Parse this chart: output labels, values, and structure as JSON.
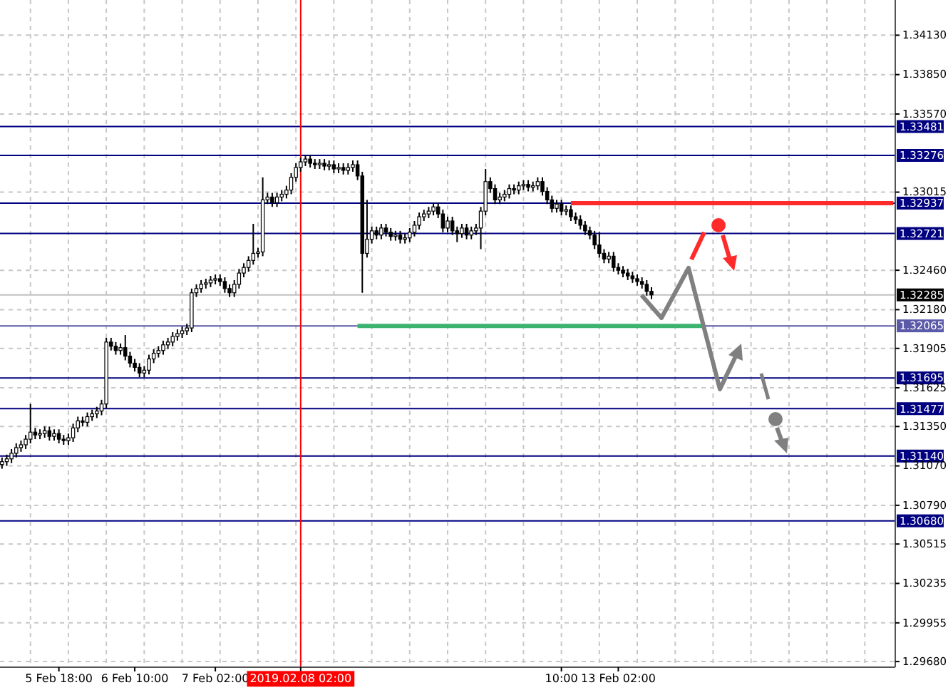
{
  "chart_data": {
    "type": "candlestick",
    "categories": [
      null,
      null,
      null,
      null,
      null,
      null,
      null,
      null,
      null,
      null,
      null,
      null,
      "5 Feb 18:00",
      null,
      null,
      null,
      null,
      null,
      null,
      null,
      null,
      null,
      null,
      null,
      null,
      null,
      null,
      null,
      "6 Feb 10:00",
      null,
      null,
      null,
      null,
      null,
      null,
      null,
      null,
      null,
      null,
      null,
      null,
      null,
      null,
      null,
      null,
      "7 Feb 02:00",
      null,
      null,
      null,
      null,
      null,
      null,
      null,
      null,
      null,
      null,
      null,
      null,
      null,
      null,
      null,
      null,
      null,
      "2019.02.08 02:00",
      null,
      null,
      null,
      null,
      null,
      null,
      null,
      null,
      null,
      null,
      null,
      null,
      null,
      null,
      null,
      null,
      null,
      null,
      null,
      null,
      null,
      null,
      null,
      null,
      null,
      null,
      null,
      null,
      null,
      null,
      null,
      null,
      null,
      null,
      null,
      null,
      null,
      null,
      null,
      null,
      null,
      null,
      null,
      null,
      null,
      null,
      null,
      null,
      null,
      null,
      null,
      null,
      null,
      null,
      "10:00",
      null,
      null,
      null,
      null,
      null,
      null,
      null,
      null,
      null,
      null,
      null,
      "13 Feb 02:00",
      null,
      null,
      null,
      null,
      null,
      null,
      null,
      null,
      null,
      null,
      null,
      null,
      null,
      null,
      null,
      null,
      null,
      null,
      null,
      null,
      null,
      null,
      null,
      null,
      null,
      null,
      null,
      null,
      null,
      null,
      null,
      null,
      null,
      null,
      null,
      null,
      null,
      null,
      null,
      null,
      null,
      null,
      null,
      null,
      null,
      null,
      null,
      null,
      null,
      null,
      null,
      null,
      null,
      null,
      null,
      null,
      null,
      null
    ],
    "color": "#000000",
    "ohlc": [
      [
        1.3108,
        1.3113,
        1.3105,
        1.311
      ],
      [
        1.311,
        1.3115,
        1.3107,
        1.3112
      ],
      [
        1.3112,
        1.3119,
        1.3109,
        1.3116
      ],
      [
        1.3116,
        1.3123,
        1.3113,
        1.312
      ],
      [
        1.312,
        1.3125,
        1.3117,
        1.3122
      ],
      [
        1.3122,
        1.3129,
        1.3119,
        1.3126
      ],
      [
        1.3126,
        1.3151,
        1.3123,
        1.3131
      ],
      [
        1.3131,
        1.3134,
        1.3126,
        1.3129
      ],
      [
        1.3129,
        1.3133,
        1.3126,
        1.313
      ],
      [
        1.313,
        1.3135,
        1.3127,
        1.3132
      ],
      [
        1.3132,
        1.3135,
        1.3125,
        1.3128
      ],
      [
        1.3128,
        1.3133,
        1.3125,
        1.313
      ],
      [
        1.313,
        1.3133,
        1.3123,
        1.3126
      ],
      [
        1.3126,
        1.3129,
        1.3122,
        1.3125
      ],
      [
        1.3125,
        1.313,
        1.3122,
        1.3127
      ],
      [
        1.3127,
        1.3137,
        1.3124,
        1.3134
      ],
      [
        1.3134,
        1.3142,
        1.3131,
        1.3139
      ],
      [
        1.3139,
        1.3142,
        1.3135,
        1.3138
      ],
      [
        1.3138,
        1.3145,
        1.3135,
        1.3142
      ],
      [
        1.3142,
        1.3147,
        1.3139,
        1.3144
      ],
      [
        1.3144,
        1.3149,
        1.3141,
        1.3146
      ],
      [
        1.3146,
        1.3154,
        1.3143,
        1.3151
      ],
      [
        1.3151,
        1.3198,
        1.3148,
        1.3195
      ],
      [
        1.3195,
        1.3198,
        1.3189,
        1.3192
      ],
      [
        1.3192,
        1.3195,
        1.3186,
        1.3189
      ],
      [
        1.3189,
        1.3194,
        1.3186,
        1.3191
      ],
      [
        1.3191,
        1.32,
        1.3182,
        1.3185
      ],
      [
        1.3185,
        1.3188,
        1.3177,
        1.318
      ],
      [
        1.318,
        1.3183,
        1.3174,
        1.3177
      ],
      [
        1.3177,
        1.318,
        1.317,
        1.3173
      ],
      [
        1.3173,
        1.3178,
        1.317,
        1.3175
      ],
      [
        1.3175,
        1.3186,
        1.3172,
        1.3183
      ],
      [
        1.3183,
        1.319,
        1.318,
        1.3187
      ],
      [
        1.3187,
        1.3192,
        1.3184,
        1.3189
      ],
      [
        1.3189,
        1.3196,
        1.3186,
        1.3193
      ],
      [
        1.3193,
        1.3198,
        1.319,
        1.3195
      ],
      [
        1.3195,
        1.3202,
        1.3192,
        1.3199
      ],
      [
        1.3199,
        1.3204,
        1.3196,
        1.3201
      ],
      [
        1.3201,
        1.3206,
        1.3198,
        1.3203
      ],
      [
        1.3203,
        1.3208,
        1.32,
        1.3205
      ],
      [
        1.3205,
        1.3233,
        1.3202,
        1.323
      ],
      [
        1.323,
        1.3236,
        1.3227,
        1.3233
      ],
      [
        1.3233,
        1.3239,
        1.323,
        1.3236
      ],
      [
        1.3236,
        1.324,
        1.3233,
        1.3237
      ],
      [
        1.3237,
        1.3242,
        1.3234,
        1.3239
      ],
      [
        1.3239,
        1.3243,
        1.3236,
        1.324
      ],
      [
        1.324,
        1.3243,
        1.3235,
        1.3238
      ],
      [
        1.3238,
        1.3241,
        1.323,
        1.3233
      ],
      [
        1.3233,
        1.3236,
        1.3227,
        1.323
      ],
      [
        1.323,
        1.3239,
        1.3227,
        1.3236
      ],
      [
        1.3236,
        1.3247,
        1.3233,
        1.3244
      ],
      [
        1.3244,
        1.3251,
        1.3241,
        1.3248
      ],
      [
        1.3248,
        1.3256,
        1.3245,
        1.3253
      ],
      [
        1.3253,
        1.3279,
        1.325,
        1.3258
      ],
      [
        1.3258,
        1.3262,
        1.3255,
        1.3259
      ],
      [
        1.3259,
        1.3312,
        1.3256,
        1.3296
      ],
      [
        1.3296,
        1.3301,
        1.3293,
        1.3298
      ],
      [
        1.3298,
        1.3301,
        1.3291,
        1.3294
      ],
      [
        1.3294,
        1.3301,
        1.3291,
        1.3298
      ],
      [
        1.3298,
        1.3303,
        1.3295,
        1.33
      ],
      [
        1.33,
        1.3306,
        1.3297,
        1.3303
      ],
      [
        1.3303,
        1.3315,
        1.33,
        1.3312
      ],
      [
        1.3312,
        1.3322,
        1.3309,
        1.3319
      ],
      [
        1.3319,
        1.3326,
        1.3316,
        1.3323
      ],
      [
        1.3323,
        1.3328,
        1.332,
        1.3325
      ],
      [
        1.3325,
        1.3328,
        1.3319,
        1.3322
      ],
      [
        1.3322,
        1.3325,
        1.3318,
        1.3321
      ],
      [
        1.3321,
        1.3325,
        1.3318,
        1.3322
      ],
      [
        1.3322,
        1.3325,
        1.3317,
        1.332
      ],
      [
        1.332,
        1.3324,
        1.3317,
        1.3321
      ],
      [
        1.3321,
        1.3324,
        1.3315,
        1.3318
      ],
      [
        1.3318,
        1.3322,
        1.3315,
        1.3319
      ],
      [
        1.3319,
        1.3322,
        1.3314,
        1.3317
      ],
      [
        1.3317,
        1.3322,
        1.3314,
        1.3319
      ],
      [
        1.3319,
        1.3324,
        1.3316,
        1.3321
      ],
      [
        1.3321,
        1.3324,
        1.331,
        1.3313
      ],
      [
        1.3313,
        1.3316,
        1.323,
        1.3258
      ],
      [
        1.3258,
        1.3296,
        1.3255,
        1.3268
      ],
      [
        1.3268,
        1.3277,
        1.3265,
        1.3274
      ],
      [
        1.3274,
        1.3277,
        1.3268,
        1.3271
      ],
      [
        1.3271,
        1.3279,
        1.3268,
        1.3276
      ],
      [
        1.3276,
        1.3279,
        1.327,
        1.3273
      ],
      [
        1.3273,
        1.3276,
        1.3267,
        1.327
      ],
      [
        1.327,
        1.3274,
        1.3267,
        1.3271
      ],
      [
        1.3271,
        1.3274,
        1.3265,
        1.3268
      ],
      [
        1.3268,
        1.3272,
        1.3265,
        1.3269
      ],
      [
        1.3269,
        1.3276,
        1.3266,
        1.3273
      ],
      [
        1.3273,
        1.3281,
        1.327,
        1.3278
      ],
      [
        1.3278,
        1.3287,
        1.3275,
        1.3284
      ],
      [
        1.3284,
        1.3289,
        1.3281,
        1.3286
      ],
      [
        1.3286,
        1.3291,
        1.3283,
        1.3288
      ],
      [
        1.3288,
        1.3294,
        1.3285,
        1.3291
      ],
      [
        1.3291,
        1.3294,
        1.3283,
        1.3286
      ],
      [
        1.3286,
        1.3289,
        1.3273,
        1.3276
      ],
      [
        1.3276,
        1.3284,
        1.3273,
        1.3281
      ],
      [
        1.3281,
        1.3284,
        1.3271,
        1.3274
      ],
      [
        1.3274,
        1.3277,
        1.3266,
        1.3272
      ],
      [
        1.3272,
        1.3279,
        1.3269,
        1.3276
      ],
      [
        1.3276,
        1.3279,
        1.3268,
        1.3271
      ],
      [
        1.3271,
        1.3277,
        1.3268,
        1.3274
      ],
      [
        1.3274,
        1.3279,
        1.3271,
        1.3276
      ],
      [
        1.3276,
        1.3291,
        1.3261,
        1.3288
      ],
      [
        1.3288,
        1.3318,
        1.3285,
        1.3309
      ],
      [
        1.3309,
        1.3312,
        1.3301,
        1.3304
      ],
      [
        1.3304,
        1.3307,
        1.3293,
        1.3296
      ],
      [
        1.3296,
        1.3301,
        1.3293,
        1.3298
      ],
      [
        1.3298,
        1.3303,
        1.3295,
        1.33
      ],
      [
        1.33,
        1.3307,
        1.3297,
        1.3304
      ],
      [
        1.3304,
        1.3307,
        1.33,
        1.3303
      ],
      [
        1.3303,
        1.3309,
        1.33,
        1.3306
      ],
      [
        1.3306,
        1.331,
        1.3303,
        1.3307
      ],
      [
        1.3307,
        1.331,
        1.3302,
        1.3305
      ],
      [
        1.3305,
        1.3309,
        1.3302,
        1.3306
      ],
      [
        1.3306,
        1.3312,
        1.3303,
        1.3309
      ],
      [
        1.3309,
        1.3312,
        1.3299,
        1.3302
      ],
      [
        1.3302,
        1.3305,
        1.3293,
        1.3296
      ],
      [
        1.3296,
        1.3299,
        1.3287,
        1.329
      ],
      [
        1.329,
        1.3296,
        1.3287,
        1.3293
      ],
      [
        1.3293,
        1.3296,
        1.3285,
        1.3288
      ],
      [
        1.3288,
        1.3292,
        1.3285,
        1.3289
      ],
      [
        1.3289,
        1.3292,
        1.3281,
        1.3284
      ],
      [
        1.3284,
        1.3287,
        1.3279,
        1.3282
      ],
      [
        1.3282,
        1.3285,
        1.3275,
        1.3278
      ],
      [
        1.3278,
        1.3281,
        1.3271,
        1.3274
      ],
      [
        1.3274,
        1.3277,
        1.3268,
        1.3271
      ],
      [
        1.3271,
        1.3274,
        1.3261,
        1.3264
      ],
      [
        1.3264,
        1.3273,
        1.3255,
        1.3258
      ],
      [
        1.3258,
        1.3261,
        1.3251,
        1.3254
      ],
      [
        1.3254,
        1.3259,
        1.3251,
        1.3256
      ],
      [
        1.3256,
        1.3259,
        1.3245,
        1.3248
      ],
      [
        1.3248,
        1.3251,
        1.3243,
        1.3246
      ],
      [
        1.3246,
        1.3249,
        1.3241,
        1.3244
      ],
      [
        1.3244,
        1.3247,
        1.3239,
        1.3242
      ],
      [
        1.3242,
        1.3245,
        1.3237,
        1.324
      ],
      [
        1.324,
        1.3243,
        1.3235,
        1.3238
      ],
      [
        1.3238,
        1.3241,
        1.3233,
        1.3236
      ],
      [
        1.3236,
        1.3239,
        1.3228,
        1.3231
      ],
      [
        1.3231,
        1.3234,
        1.32255,
        1.32285
      ],
      null,
      null,
      null,
      null,
      null,
      null,
      null,
      null,
      null,
      null,
      null,
      null,
      null,
      null,
      null,
      null,
      null,
      null,
      null,
      null,
      null,
      null,
      null,
      null,
      null,
      null,
      null,
      null,
      null,
      null,
      null,
      null,
      null,
      null,
      null,
      null,
      null,
      null,
      null,
      null,
      null,
      null,
      null,
      null,
      null,
      null,
      null,
      null,
      null,
      null,
      null
    ],
    "series": [
      {
        "type": "line",
        "color": "#ff2a2a",
        "values": [
          null,
          null,
          null,
          null,
          null,
          null,
          null,
          null,
          null,
          null,
          null,
          null,
          null,
          null,
          null,
          null,
          null,
          null,
          null,
          null,
          null,
          null,
          null,
          null,
          null,
          null,
          null,
          null,
          null,
          null,
          null,
          null,
          null,
          null,
          null,
          null,
          null,
          null,
          null,
          null,
          null,
          null,
          null,
          null,
          null,
          null,
          null,
          null,
          null,
          null,
          null,
          null,
          null,
          null,
          null,
          null,
          null,
          null,
          null,
          null,
          null,
          null,
          null,
          null,
          null,
          null,
          null,
          null,
          null,
          null,
          null,
          null,
          null,
          null,
          null,
          null,
          null,
          null,
          null,
          null,
          null,
          null,
          null,
          null,
          null,
          null,
          null,
          null,
          null,
          null,
          null,
          null,
          null,
          null,
          null,
          null,
          null,
          null,
          null,
          null,
          null,
          null,
          null,
          null,
          null,
          null,
          null,
          null,
          null,
          null,
          null,
          null,
          null,
          null,
          null,
          null,
          null,
          null,
          null,
          null,
          1.32937,
          1.32937,
          1.32937,
          1.32937,
          1.32937,
          1.32937,
          1.32937,
          1.32937,
          1.32937,
          1.32937,
          1.32937,
          1.32937,
          1.32937,
          1.32937,
          1.32937,
          1.32937,
          1.32937,
          1.32937,
          1.32937,
          1.32937,
          1.32937,
          1.32937,
          1.32937,
          1.32937,
          1.32937,
          1.32937,
          1.32937,
          1.32937,
          1.32937,
          1.32937,
          1.32937,
          1.32937,
          1.32937,
          1.32937,
          1.32937,
          1.32937,
          1.32937,
          1.32937,
          1.32937,
          1.32937,
          1.32937,
          1.32937,
          1.32937,
          1.32937,
          1.32937,
          1.32937,
          1.32937,
          1.32937,
          1.32937,
          1.32937,
          1.32937,
          1.32937,
          1.32937,
          1.32937,
          1.32937,
          1.32937,
          1.32937,
          1.32937,
          1.32937,
          1.32937,
          1.32937,
          1.32937,
          1.32937,
          1.32937,
          1.32937,
          1.32937,
          1.32937,
          1.32937,
          1.32937
        ]
      },
      {
        "type": "line",
        "color": "#3cb371",
        "values": [
          null,
          null,
          null,
          null,
          null,
          null,
          null,
          null,
          null,
          null,
          null,
          null,
          null,
          null,
          null,
          null,
          null,
          null,
          null,
          null,
          null,
          null,
          null,
          null,
          null,
          null,
          null,
          null,
          null,
          null,
          null,
          null,
          null,
          null,
          null,
          null,
          null,
          null,
          null,
          null,
          null,
          null,
          null,
          null,
          null,
          null,
          null,
          null,
          null,
          null,
          null,
          null,
          null,
          null,
          null,
          null,
          null,
          null,
          null,
          null,
          null,
          null,
          null,
          null,
          null,
          null,
          null,
          null,
          null,
          null,
          null,
          null,
          null,
          null,
          null,
          1.32065,
          1.32065,
          1.32065,
          1.32065,
          1.32065,
          1.32065,
          1.32065,
          1.32065,
          1.32065,
          1.32065,
          1.32065,
          1.32065,
          1.32065,
          1.32065,
          1.32065,
          1.32065,
          1.32065,
          1.32065,
          1.32065,
          1.32065,
          1.32065,
          1.32065,
          1.32065,
          1.32065,
          1.32065,
          1.32065,
          1.32065,
          1.32065,
          1.32065,
          1.32065,
          1.32065,
          1.32065,
          1.32065,
          1.32065,
          1.32065,
          1.32065,
          1.32065,
          1.32065,
          1.32065,
          1.32065,
          1.32065,
          1.32065,
          1.32065,
          1.32065,
          1.32065,
          1.32065,
          1.32065,
          1.32065,
          1.32065,
          1.32065,
          1.32065,
          1.32065,
          1.32065,
          1.32065,
          1.32065,
          1.32065,
          1.32065,
          1.32065,
          1.32065,
          1.32065,
          1.32065,
          1.32065,
          1.32065,
          1.32065,
          1.32065,
          1.32065,
          1.32065,
          1.32065,
          1.32065,
          1.32065,
          1.32065,
          1.32065,
          1.32065,
          1.32065,
          null,
          null,
          null,
          null,
          null,
          null,
          null,
          null,
          null,
          null,
          null,
          null,
          null,
          null,
          null,
          null,
          null,
          null,
          null,
          null,
          null,
          null,
          null,
          null,
          null,
          null,
          null,
          null,
          null,
          null,
          null,
          null,
          null,
          null,
          null,
          null,
          null,
          null,
          null,
          null
        ]
      }
    ],
    "ylim": [
      1.2964,
      1.3438
    ],
    "yticks": [
      {
        "value": 1.3413,
        "label": "1.34130"
      },
      {
        "value": 1.3385,
        "label": "1.33850"
      },
      {
        "value": 1.3357,
        "label": "1.33570"
      },
      1.33015,
      {
        "value": 1.3246,
        "label": "1.32460"
      },
      {
        "value": 1.3218,
        "label": "1.32180"
      },
      1.31905,
      1.31625,
      {
        "value": 1.3135,
        "label": "1.31350"
      },
      {
        "value": 1.3107,
        "label": "1.31070"
      },
      {
        "value": 1.3079,
        "label": "1.30790"
      },
      1.30515,
      1.30235,
      1.29955,
      {
        "value": 1.2968,
        "label": "1.29680"
      }
    ],
    "grid": true,
    "ref_lines": [
      {
        "axis": "y",
        "value": 1.33481,
        "label": "1.33481",
        "color": "#000080"
      },
      {
        "axis": "y",
        "value": 1.33276,
        "label": "1.33276",
        "color": "#000080"
      },
      {
        "axis": "y",
        "value": 1.32937,
        "label": "1.32937",
        "color": "#000080"
      },
      {
        "axis": "y",
        "value": 1.32721,
        "label": "1.32721",
        "color": "#000080"
      },
      {
        "axis": "y",
        "value": 1.32065,
        "label": "1.32065",
        "color": "#5a5aa8"
      },
      {
        "axis": "y",
        "value": 1.31695,
        "label": "1.31695",
        "color": "#000080"
      },
      {
        "axis": "y",
        "value": 1.31477,
        "label": "1.31477",
        "color": "#000080"
      },
      {
        "axis": "y",
        "value": 1.3114,
        "label": "1.31140",
        "color": "#000080"
      },
      {
        "axis": "y",
        "value": 1.3068,
        "label": "1.30680",
        "color": "#000080"
      },
      {
        "axis": "y",
        "value": 1.32285,
        "label": "1.32285",
        "color": "#c0c0c0"
      },
      {
        "axis": "x",
        "value": "2019.02.08 02:00",
        "color": "#ff0000"
      }
    ]
  }
}
